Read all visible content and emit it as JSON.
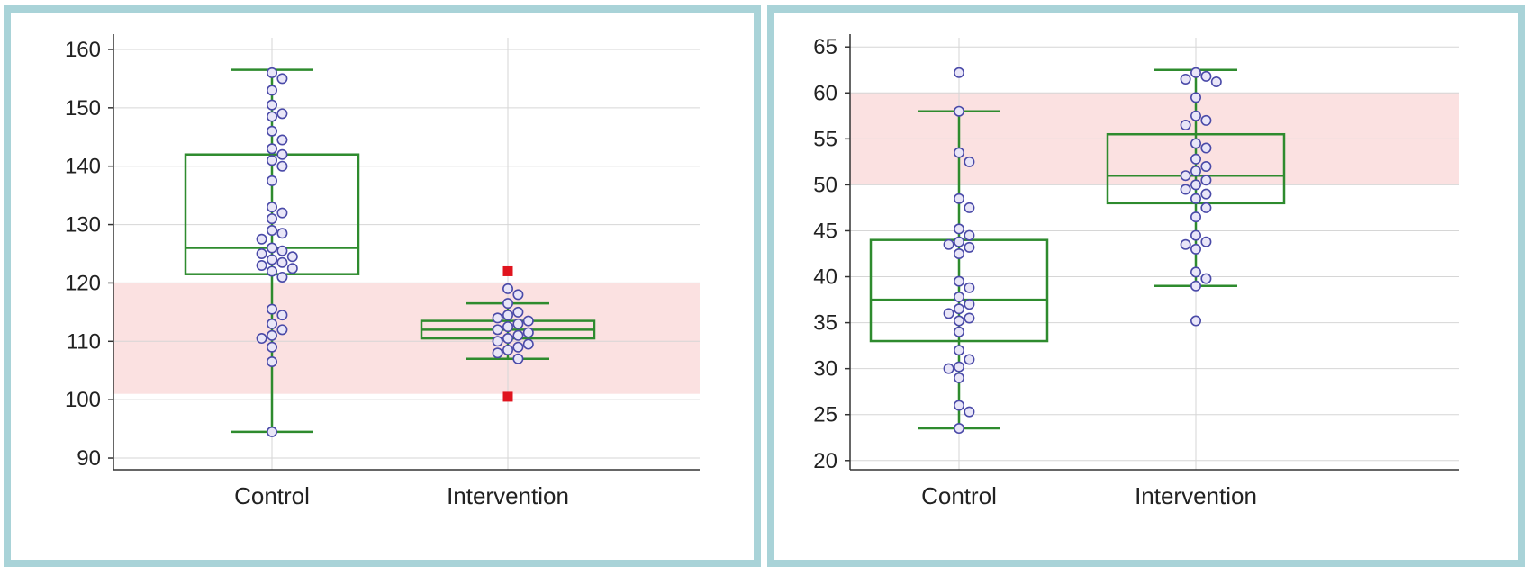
{
  "chart_data": [
    {
      "type": "box",
      "categories": [
        "Control",
        "Intervention"
      ],
      "ylim": [
        88,
        162
      ],
      "yticks": [
        90,
        100,
        110,
        120,
        130,
        140,
        150,
        160
      ],
      "reference_band": [
        101,
        120
      ],
      "grid": true,
      "colors": {
        "box": "#2e8b2e",
        "band": "#fbe1e1",
        "point_fill": "#e9e6f8",
        "point_stroke": "#4a4aa8",
        "outlier": "#e0141e",
        "grid": "#d6d6d6"
      },
      "boxes": [
        {
          "category": "Control",
          "min": 94.5,
          "q1": 121.5,
          "median": 126,
          "q3": 142,
          "max": 156.5,
          "points": [
            156,
            155,
            153,
            150.5,
            149,
            148.5,
            146,
            144.5,
            143,
            142,
            141,
            140,
            137.5,
            133,
            132,
            131,
            129,
            128.5,
            127.5,
            126,
            125.5,
            125,
            124.5,
            124,
            123.5,
            123,
            122.5,
            122,
            121,
            115.5,
            114.5,
            113,
            112,
            111,
            110.5,
            109,
            106.5,
            94.5
          ],
          "outliers": []
        },
        {
          "category": "Intervention",
          "min": 107,
          "q1": 110.5,
          "median": 112,
          "q3": 113.5,
          "max": 116.5,
          "points": [
            119,
            118,
            116.5,
            115,
            114.5,
            114,
            113.5,
            113,
            112.5,
            112,
            111.5,
            111,
            110.5,
            110,
            109.5,
            109,
            108.5,
            108,
            107
          ],
          "outliers": [
            122,
            100.5
          ]
        }
      ]
    },
    {
      "type": "box",
      "categories": [
        "Control",
        "Intervention"
      ],
      "ylim": [
        19,
        66
      ],
      "yticks": [
        20,
        25,
        30,
        35,
        40,
        45,
        50,
        55,
        60,
        65
      ],
      "reference_band": [
        50,
        60
      ],
      "grid": true,
      "colors": {
        "box": "#2e8b2e",
        "band": "#fbe1e1",
        "point_fill": "#e9e6f8",
        "point_stroke": "#4a4aa8",
        "grid": "#d6d6d6"
      },
      "boxes": [
        {
          "category": "Control",
          "min": 23.5,
          "q1": 33,
          "median": 37.5,
          "q3": 44,
          "max": 58,
          "points": [
            62.2,
            58,
            53.5,
            52.5,
            48.5,
            47.5,
            45.2,
            44.5,
            43.8,
            43.5,
            43.2,
            42.5,
            39.5,
            38.8,
            37.8,
            37,
            36.5,
            36,
            35.5,
            35.2,
            34,
            32,
            31,
            30.2,
            30,
            29,
            26,
            25.3,
            23.5
          ],
          "outliers": []
        },
        {
          "category": "Intervention",
          "min": 39,
          "q1": 48,
          "median": 51,
          "q3": 55.5,
          "max": 62.5,
          "points": [
            62.2,
            61.8,
            61.5,
            61.2,
            59.5,
            57.5,
            57,
            56.5,
            54.5,
            54,
            52.8,
            52,
            51.5,
            51,
            50.5,
            50,
            49.5,
            49,
            48.5,
            47.5,
            46.5,
            44.5,
            43.8,
            43.5,
            43,
            40.5,
            39.8,
            39,
            35.2
          ],
          "outliers": []
        }
      ]
    }
  ]
}
